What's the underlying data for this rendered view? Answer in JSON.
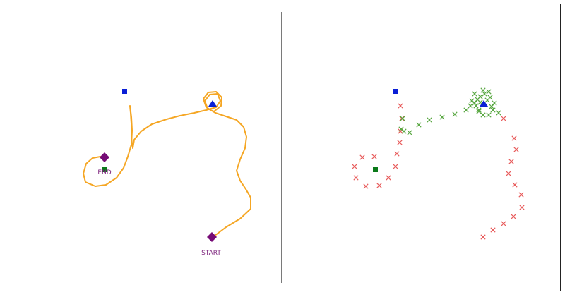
{
  "labels": {
    "start": "START",
    "end": "END"
  },
  "colors": {
    "trajectory": "#f5a623",
    "waypoint": "#760b76",
    "goal_square": "#0a1fd6",
    "goal_triangle": "#0a1fd6",
    "small_square": "#0b7a1a",
    "x_red": "#e85c5c",
    "x_green": "#5aa843",
    "divider": "#7a7a7a"
  },
  "icons": {
    "start": "diamond",
    "end": "diamond",
    "blue_square": "square",
    "blue_triangle": "triangle",
    "green_square": "square",
    "samples": "x-mark"
  }
}
